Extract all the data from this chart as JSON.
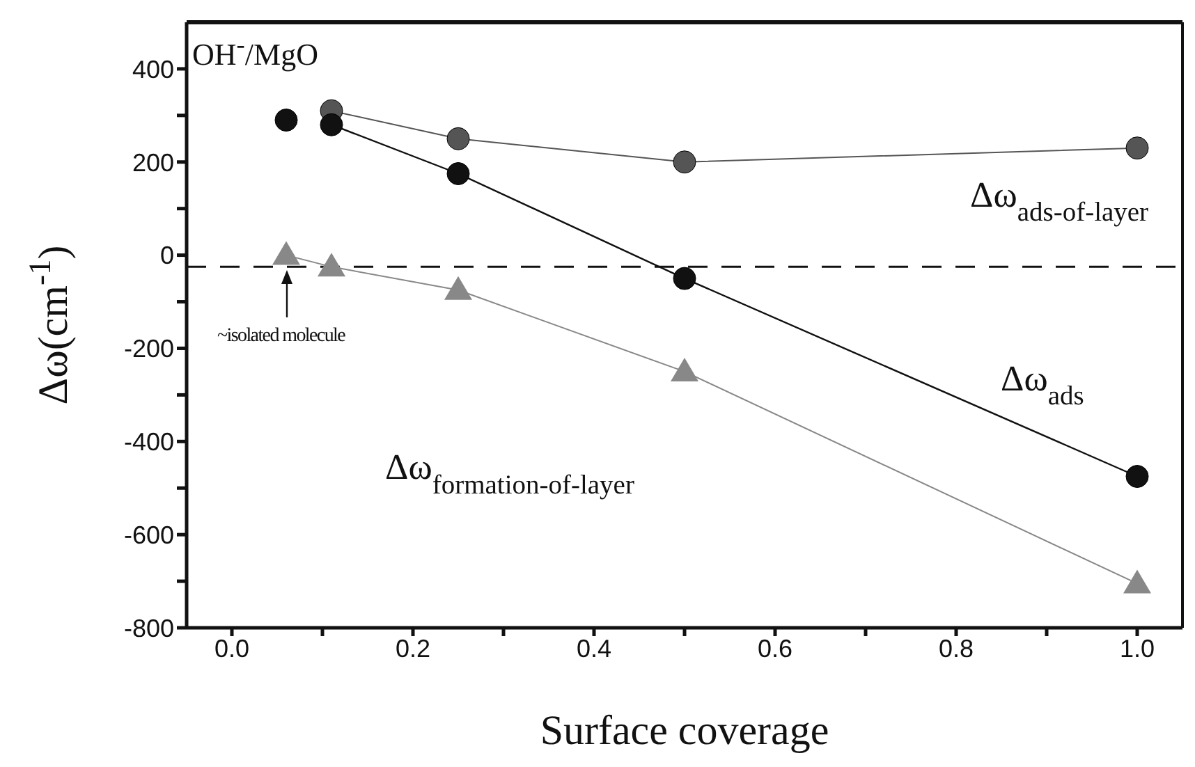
{
  "chart_data": {
    "type": "line",
    "xlabel": "Surface coverage",
    "ylabel": "Δω(cm$^{-1}$)",
    "xlim": [
      -0.05,
      1.05
    ],
    "xticks": [
      {
        "value": 0,
        "label": "0.0"
      },
      {
        "value": 0.1,
        "label": null
      },
      0.2,
      {
        "value": 0.3,
        "label": null
      },
      0.4,
      {
        "value": 0.5,
        "label": null
      },
      0.6,
      {
        "value": 0.7,
        "label": null
      },
      0.8,
      {
        "value": 0.9,
        "label": null
      },
      {
        "value": 1,
        "label": "1.0"
      }
    ],
    "ylim": [
      -800,
      500
    ],
    "yticks": [
      -800,
      {
        "value": -700,
        "label": null
      },
      -600,
      {
        "value": -500,
        "label": null
      },
      -400,
      {
        "value": -300,
        "label": null
      },
      -200,
      {
        "value": -100,
        "label": null
      },
      0,
      {
        "value": 100,
        "label": null
      },
      200,
      {
        "value": 300,
        "label": null
      },
      400
    ],
    "series": [
      {
        "name": "Δω$_{ads-of-layer}$",
        "color": "#555555",
        "marker": "circle",
        "x": [
          0.11,
          0.25,
          0.5,
          1.0
        ],
        "values": [
          310,
          250,
          200,
          230
        ]
      },
      {
        "name": "Δω$_{ads}$",
        "color": "#111111",
        "marker": "circle",
        "x": [
          0.11,
          0.25,
          0.5,
          1.0
        ],
        "values": [
          280,
          175,
          -50,
          -475
        ]
      },
      {
        "type": "scatter",
        "color": "#111111",
        "x": [
          0.06
        ],
        "values": [
          290
        ]
      },
      {
        "name": "Δω$_{formation-of-layer}$",
        "color": "#888888",
        "marker": "triangle",
        "x": [
          0.06,
          0.11,
          0.25,
          0.5,
          1.0
        ],
        "values": [
          0,
          -25,
          -75,
          -250,
          -705
        ]
      }
    ],
    "ref_lines": [
      {
        "axis": "y",
        "value": -25,
        "color": "#111111",
        "line_style": "dashed"
      }
    ],
    "annotations": [
      "OH$^{-}$/MgO",
      "~isolated molecule"
    ],
    "marker": "circle"
  }
}
